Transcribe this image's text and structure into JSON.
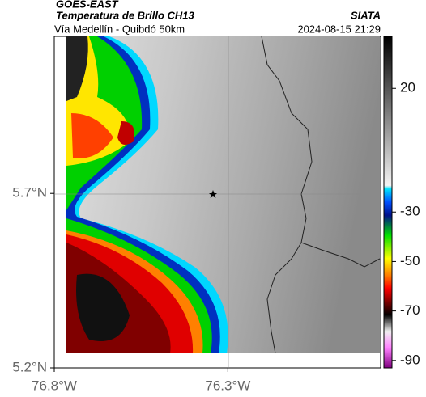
{
  "header": {
    "satellite": "GOES-EAST",
    "product": "Temperatura de Brillo CH13",
    "agency": "SIATA",
    "route": "Vía Medellín - Quibdó 50km",
    "timestamp": "2024-08-15 21:29"
  },
  "map": {
    "xlim": [
      -76.8,
      -75.86
    ],
    "ylim": [
      5.2,
      6.15
    ],
    "xticks": [
      {
        "value": -76.8,
        "label": "76.8°W"
      },
      {
        "value": -76.3,
        "label": "76.3°W"
      }
    ],
    "yticks": [
      {
        "value": 5.7,
        "label": "5.7°N"
      },
      {
        "value": 5.2,
        "label": "5.2°N"
      }
    ],
    "colorbar": {
      "lim": [
        -93,
        41
      ],
      "ticks": [
        20,
        -30,
        -50,
        -70,
        -90
      ]
    }
  }
}
